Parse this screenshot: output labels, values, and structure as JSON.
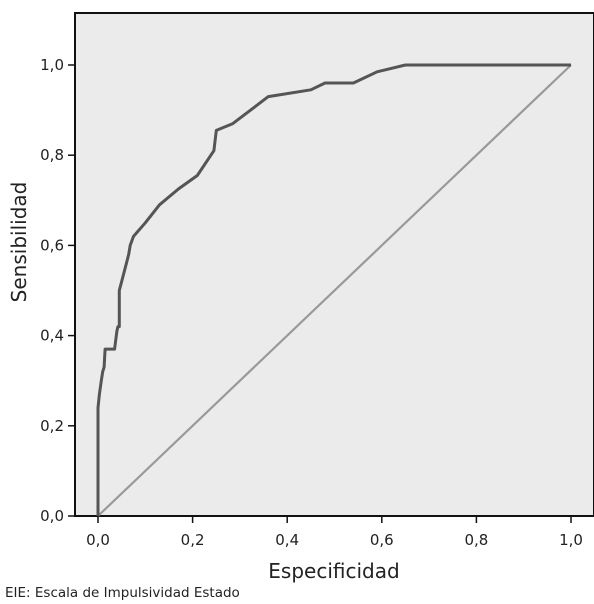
{
  "chart_data": {
    "type": "line",
    "title": "",
    "xlabel": "Especificidad",
    "ylabel": "Sensibilidad",
    "xlim": [
      0,
      1
    ],
    "ylim": [
      0,
      1
    ],
    "xticks": [
      "0,0",
      "0,2",
      "0,4",
      "0,6",
      "0,8",
      "1,0"
    ],
    "yticks": [
      "0,0",
      "0,2",
      "0,4",
      "0,6",
      "0,8",
      "1,0"
    ],
    "grid": false,
    "series": [
      {
        "color": "#555555",
        "x": [
          0,
          0,
          0.003,
          0.007,
          0.01,
          0.013,
          0.015,
          0.02,
          0.035,
          0.04,
          0.042,
          0.045,
          0.045,
          0.06,
          0.065,
          0.068,
          0.075,
          0.1,
          0.13,
          0.17,
          0.21,
          0.245,
          0.25,
          0.285,
          0.36,
          0.45,
          0.48,
          0.54,
          0.59,
          0.65,
          1.0
        ],
        "y": [
          0,
          0.24,
          0.27,
          0.3,
          0.32,
          0.33,
          0.37,
          0.37,
          0.37,
          0.41,
          0.42,
          0.42,
          0.5,
          0.56,
          0.58,
          0.6,
          0.62,
          0.65,
          0.69,
          0.725,
          0.755,
          0.81,
          0.855,
          0.87,
          0.93,
          0.945,
          0.96,
          0.96,
          0.985,
          1.0,
          1.0
        ]
      },
      {
        "color": "#999999",
        "x": [
          0,
          1
        ],
        "y": [
          0,
          1
        ]
      }
    ]
  },
  "caption": "EIE: Escala de Impulsividad Estado"
}
